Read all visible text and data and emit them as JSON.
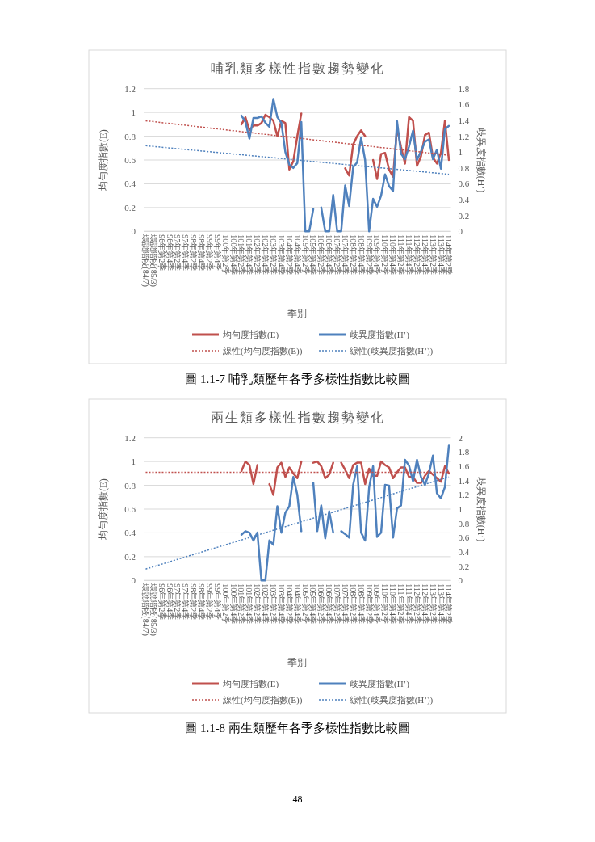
{
  "chart_data": [
    {
      "type": "line",
      "title": "哺乳類多樣性指數趨勢變化",
      "xlabel": "季別",
      "ylabel": "均勻度指數(E)",
      "y2label": "歧異度指數(H’)",
      "categories": [
        "環說階段(84/7)",
        null,
        "環說階段(85/3)",
        null,
        "96年第2季",
        null,
        "96年第4季",
        null,
        "97年第2季",
        null,
        "97年第4季",
        null,
        "98年第2季",
        null,
        "98年第4季",
        null,
        "99年第2季",
        null,
        "99年第4季",
        null,
        "100年第2季",
        null,
        "100年第4季",
        null,
        "101年第2季",
        null,
        "101年第4季",
        null,
        "102年第2季",
        null,
        "102年第4季",
        null,
        "103年第2季",
        null,
        "103年第4季",
        null,
        "104年第2季",
        null,
        "104年第4季",
        null,
        "105年第2季",
        null,
        "105年第4季",
        null,
        "106年第2季",
        null,
        "106年第4季",
        null,
        "107年第2季",
        null,
        "107年第4季",
        null,
        "108年第2季",
        null,
        "108年第4季",
        null,
        "109年第2季",
        null,
        "109年第4季",
        null,
        "110年第2季",
        null,
        "110年第4季",
        null,
        "111年第2季",
        null,
        "111年第4季",
        null,
        "112年第2季",
        null,
        "112年第4季",
        null,
        "113年第2季",
        null,
        "113年第4季",
        null,
        "114年第2季"
      ],
      "ylim": [
        0,
        1.2
      ],
      "yticks": [
        0,
        0.2,
        0.4,
        0.6,
        0.8,
        1,
        1.2
      ],
      "y2lim": [
        0,
        1.8
      ],
      "y2ticks": [
        0,
        0.2,
        0.4,
        0.6,
        0.8,
        1,
        1.2,
        1.4,
        1.6,
        1.8
      ],
      "grid": "y",
      "legend": "bottom",
      "series": [
        {
          "name": "均勻度指數(E)",
          "color": "#c0504d",
          "values": [
            null,
            null,
            null,
            null,
            null,
            null,
            null,
            null,
            null,
            null,
            null,
            null,
            null,
            null,
            null,
            null,
            null,
            null,
            null,
            null,
            null,
            null,
            null,
            null,
            0.9,
            0.96,
            0.85,
            0.89,
            0.89,
            0.91,
            0.98,
            0.96,
            0.93,
            0.8,
            0.93,
            0.91,
            0.52,
            0.59,
            0.8,
            0.99,
            null,
            null,
            null,
            null,
            null,
            null,
            null,
            null,
            null,
            null,
            0.53,
            0.47,
            0.73,
            0.8,
            0.85,
            0.8,
            null,
            0.6,
            0.44,
            0.65,
            0.66,
            0.52,
            0.46,
            0.87,
            0.71,
            0.57,
            0.96,
            0.93,
            0.55,
            0.63,
            0.81,
            0.83,
            0.62,
            0.57,
            0.66,
            0.93,
            0.6
          ]
        },
        {
          "name": "歧異度指數(H’)",
          "color": "#4f81bd",
          "axis": "y2",
          "values": [
            null,
            null,
            null,
            null,
            null,
            null,
            null,
            null,
            null,
            null,
            null,
            null,
            null,
            null,
            null,
            null,
            null,
            null,
            null,
            null,
            null,
            null,
            null,
            null,
            1.46,
            1.38,
            1.17,
            1.43,
            1.43,
            1.45,
            1.37,
            1.32,
            1.67,
            1.44,
            1.37,
            1.0,
            0.84,
            0.8,
            0.86,
            1.38,
            0,
            0,
            0.28,
            null,
            0.3,
            0,
            0,
            0.46,
            0,
            0,
            0.58,
            0.32,
            0.81,
            0.87,
            1.18,
            0.9,
            0,
            0.41,
            0.31,
            0.45,
            0.72,
            0.57,
            0.51,
            1.39,
            0.98,
            0.91,
            1.07,
            1.27,
            0.9,
            1.01,
            1.13,
            1.16,
            0.91,
            1.03,
            0.79,
            1.29,
            1.33
          ]
        },
        {
          "name": "線性(均勻度指數(E))",
          "color": "#c0504d",
          "type": "line",
          "line_style": "dotted",
          "x": [
            "環說階段(84/7)",
            "114年第2季"
          ],
          "values": [
            0.93,
            0.64
          ]
        },
        {
          "name": "線性(歧異度指數(H’))",
          "color": "#4f81bd",
          "type": "line",
          "line_style": "dotted",
          "axis": "y2",
          "x": [
            "環說階段(84/7)",
            "114年第2季"
          ],
          "values": [
            1.08,
            0.72
          ]
        }
      ],
      "annotations": [
        "圖 1.1-7 哺乳類歷年各季多樣性指數比較圖"
      ]
    },
    {
      "type": "line",
      "title": "兩生類多樣性指數趨勢變化",
      "xlabel": "季別",
      "ylabel": "均勻度指數(E)",
      "y2label": "歧異度指數(H’)",
      "categories": [
        "環說階段(84/7)",
        null,
        "環說階段(85/3)",
        null,
        "96年第2季",
        null,
        "96年第4季",
        null,
        "97年第2季",
        null,
        "97年第4季",
        null,
        "98年第2季",
        null,
        "98年第4季",
        null,
        "99年第2季",
        null,
        "99年第4季",
        null,
        "100年第2季",
        null,
        "100年第4季",
        null,
        "101年第2季",
        null,
        "101年第4季",
        null,
        "102年第2季",
        null,
        "102年第4季",
        null,
        "103年第2季",
        null,
        "103年第4季",
        null,
        "104年第2季",
        null,
        "104年第4季",
        null,
        "105年第2季",
        null,
        "105年第4季",
        null,
        "106年第2季",
        null,
        "106年第4季",
        null,
        "107年第2季",
        null,
        "107年第4季",
        null,
        "108年第2季",
        null,
        "108年第4季",
        null,
        "109年第2季",
        null,
        "109年第4季",
        null,
        "110年第2季",
        null,
        "110年第4季",
        null,
        "111年第2季",
        null,
        "111年第4季",
        null,
        "112年第2季",
        null,
        "112年第4季",
        null,
        "113年第2季",
        null,
        "113年第4季",
        null,
        "114年第2季"
      ],
      "ylim": [
        0,
        1.2
      ],
      "yticks": [
        0,
        0.2,
        0.4,
        0.6,
        0.8,
        1,
        1.2
      ],
      "y2lim": [
        0,
        2
      ],
      "y2ticks": [
        0,
        0.2,
        0.4,
        0.6,
        0.8,
        1,
        1.2,
        1.4,
        1.6,
        1.8,
        2
      ],
      "grid": "y",
      "legend": "bottom",
      "series": [
        {
          "name": "均勻度指數(E)",
          "color": "#c0504d",
          "values": [
            null,
            null,
            null,
            null,
            null,
            null,
            null,
            null,
            null,
            null,
            null,
            null,
            null,
            null,
            null,
            null,
            null,
            null,
            null,
            null,
            null,
            null,
            null,
            null,
            0.92,
            1.0,
            0.97,
            0.81,
            0.97,
            null,
            null,
            0.81,
            0.72,
            0.95,
            0.99,
            0.87,
            0.95,
            0.9,
            0.86,
            1.0,
            null,
            null,
            0.99,
            1.0,
            0.96,
            0.86,
            0.89,
            0.99,
            null,
            0.99,
            0.93,
            0.86,
            0.97,
            0.99,
            0.99,
            0.81,
            0.94,
            0.88,
            0.88,
            1.0,
            0.97,
            0.95,
            0.86,
            0.91,
            0.95,
            0.95,
            0.87,
            0.87,
            0.82,
            0.82,
            0.88,
            0.92,
            0.89,
            0.86,
            0.83,
            0.96,
            0.9
          ]
        },
        {
          "name": "歧異度指數(H’)",
          "color": "#4f81bd",
          "axis": "y2",
          "values": [
            null,
            null,
            null,
            null,
            null,
            null,
            null,
            null,
            null,
            null,
            null,
            null,
            null,
            null,
            null,
            null,
            null,
            null,
            null,
            null,
            null,
            null,
            null,
            null,
            0.64,
            0.69,
            0.67,
            0.56,
            0.67,
            0,
            0,
            0.56,
            0.5,
            1.04,
            0.67,
            0.95,
            1.04,
            1.45,
            1.2,
            0.69,
            null,
            null,
            1.37,
            0.69,
            1.05,
            0.59,
            0.97,
            0.67,
            null,
            0.69,
            0.65,
            0.6,
            1.34,
            1.6,
            0.67,
            0.56,
            1.3,
            1.6,
            0.61,
            0.67,
            1.34,
            1.33,
            0.6,
            1.01,
            1.05,
            1.69,
            1.61,
            1.39,
            1.69,
            1.45,
            1.34,
            1.5,
            1.75,
            1.22,
            1.15,
            1.31,
            1.89
          ]
        },
        {
          "name": "線性(均勻度指數(E))",
          "color": "#c0504d",
          "type": "line",
          "line_style": "dotted",
          "x": [
            "環說階段(84/7)",
            "114年第2季"
          ],
          "values": [
            0.91,
            0.91
          ]
        },
        {
          "name": "線性(歧異度指數(H’))",
          "color": "#4f81bd",
          "type": "line",
          "line_style": "dotted",
          "axis": "y2",
          "x": [
            "環說階段(84/7)",
            "114年第2季"
          ],
          "values": [
            0.16,
            1.45
          ]
        }
      ],
      "annotations": [
        "圖 1.1-8 兩生類歷年各季多樣性指數比較圖",
        "48"
      ]
    }
  ]
}
